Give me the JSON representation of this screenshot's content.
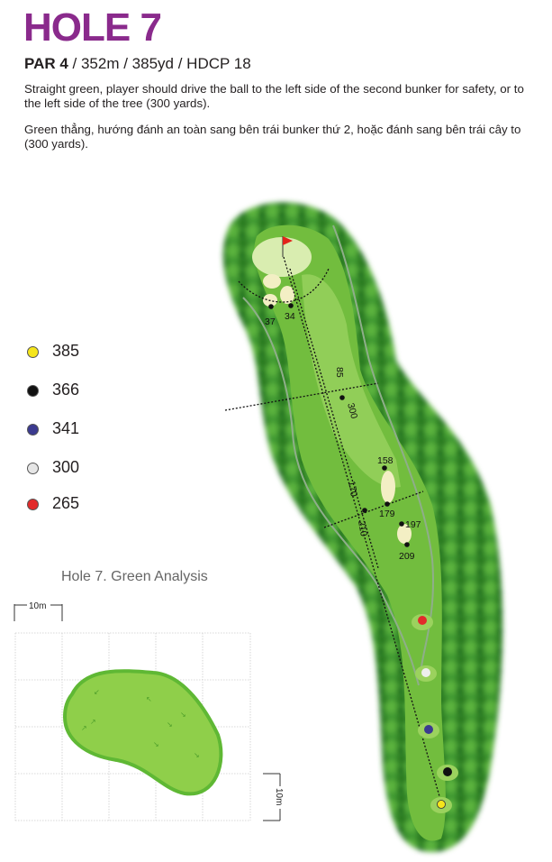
{
  "header": {
    "title": "HOLE 7",
    "par": "PAR 4",
    "stats": " / 352m / 385yd / HDCP 18"
  },
  "description": {
    "en": "Straight green, player should drive the ball to the left side of the second bunker for safety, or to the left side of the tree (300 yards).",
    "vi": "Green thẳng, hướng đánh an toàn sang bên trái bunker  thứ 2, hoặc đánh sang bên trái cây to (300 yards)."
  },
  "tee_legend": [
    {
      "label": "385",
      "color": "#f5e51b"
    },
    {
      "label": "366",
      "color": "#111111"
    },
    {
      "label": "341",
      "color": "#3b3a8f"
    },
    {
      "label": "300",
      "color": "#e6e6e6"
    },
    {
      "label": "265",
      "color": "#e22b2b"
    }
  ],
  "map": {
    "markers": [
      "37",
      "34",
      "85",
      "300",
      "158",
      "179",
      "170",
      "210",
      "197",
      "209"
    ]
  },
  "green_analysis": {
    "title": "Hole 7. Green Analysis",
    "scale_x": "10m",
    "scale_y": "10m"
  },
  "colors": {
    "title": "#8a2a8c",
    "fairway": "#7cc242",
    "trees": "#2f8a2a",
    "flag": "#e2231a"
  }
}
